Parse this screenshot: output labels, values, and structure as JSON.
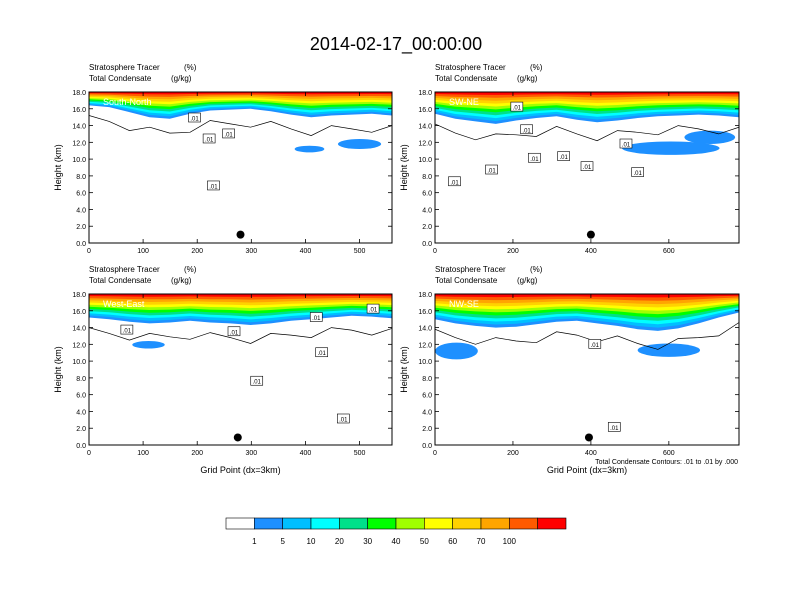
{
  "figure": {
    "title": "2014-02-17_00:00:00",
    "contour_note": "Total Condensate Contours: .01 to .01 by .000"
  },
  "colorbar": {
    "tick_labels": [
      "1",
      "5",
      "10",
      "20",
      "30",
      "40",
      "50",
      "60",
      "70",
      "100"
    ],
    "colors": [
      "#ffffff",
      "#1e90ff",
      "#00bfff",
      "#00ffff",
      "#00e08a",
      "#00ff00",
      "#a0ff00",
      "#ffff00",
      "#ffd200",
      "#ffa500",
      "#ff5a00",
      "#ff0000"
    ]
  },
  "chart_data": [
    {
      "type": "heatmap",
      "panel_label": "South-North",
      "subtitle_left_1": "Stratosphere Tracer",
      "subtitle_right_1": "(%)",
      "subtitle_left_2": "Total Condensate",
      "subtitle_right_2": "(g/kg)",
      "ylabel": "Height (km)",
      "xlabel": "",
      "xlim": [
        0,
        560
      ],
      "ylim": [
        0,
        18
      ],
      "xticks": [
        "0",
        "100",
        "200",
        "300",
        "400",
        "500"
      ],
      "xtick_values": [
        0,
        100,
        200,
        300,
        400,
        500
      ],
      "yticks": [
        "0.0",
        "2.0",
        "4.0",
        "6.0",
        "8.0",
        "10.0",
        "12.0",
        "14.0",
        "16.0",
        "18.0"
      ],
      "contour_labels": [
        {
          "text": ".01",
          "x": 195,
          "y": 14.9
        },
        {
          "text": ".01",
          "x": 222,
          "y": 12.4
        },
        {
          "text": ".01",
          "x": 258,
          "y": 13.0
        },
        {
          "text": ".01",
          "x": 230,
          "y": 6.8
        }
      ],
      "marker": {
        "x": 280,
        "y": 1.0
      },
      "tracer_base": [
        16.4,
        16.2,
        15.6,
        15.0,
        14.8,
        15.4,
        15.8,
        15.9,
        16.0,
        15.7,
        15.3,
        15.0,
        15.2,
        15.3,
        15.4,
        15.2
      ],
      "blue_patches": [
        {
          "x": 380,
          "y": 10.8,
          "w": 55,
          "h": 0.8
        },
        {
          "x": 460,
          "y": 11.2,
          "w": 80,
          "h": 1.2
        }
      ]
    },
    {
      "type": "heatmap",
      "panel_label": "SW-NE",
      "subtitle_left_1": "Stratosphere Tracer",
      "subtitle_right_1": "(%)",
      "subtitle_left_2": "Total Condensate",
      "subtitle_right_2": "(g/kg)",
      "ylabel": "Height (km)",
      "xlabel": "",
      "xlim": [
        0,
        780
      ],
      "ylim": [
        0,
        18
      ],
      "xticks": [
        "0",
        "200",
        "400",
        "600"
      ],
      "xtick_values": [
        0,
        200,
        400,
        600
      ],
      "yticks": [
        "0.0",
        "2.0",
        "4.0",
        "6.0",
        "8.0",
        "10.0",
        "12.0",
        "14.0",
        "16.0",
        "18.0"
      ],
      "contour_labels": [
        {
          "text": ".01",
          "x": 50,
          "y": 7.3
        },
        {
          "text": ".01",
          "x": 145,
          "y": 8.7
        },
        {
          "text": ".01",
          "x": 210,
          "y": 16.2
        },
        {
          "text": ".01",
          "x": 235,
          "y": 13.5
        },
        {
          "text": ".01",
          "x": 255,
          "y": 10.1
        },
        {
          "text": ".01",
          "x": 330,
          "y": 10.3
        },
        {
          "text": ".01",
          "x": 390,
          "y": 9.1
        },
        {
          "text": ".01",
          "x": 490,
          "y": 11.8
        },
        {
          "text": ".01",
          "x": 520,
          "y": 8.4
        }
      ],
      "marker": {
        "x": 400,
        "y": 1.0
      },
      "tracer_base": [
        15.4,
        14.8,
        14.5,
        14.2,
        14.6,
        14.9,
        15.1,
        14.7,
        14.4,
        14.6,
        14.9,
        15.1,
        15.2,
        15.3,
        15.2,
        15.0
      ],
      "blue_patches": [
        {
          "x": 480,
          "y": 10.5,
          "w": 250,
          "h": 1.6
        },
        {
          "x": 640,
          "y": 11.8,
          "w": 130,
          "h": 1.6
        }
      ]
    },
    {
      "type": "heatmap",
      "panel_label": "West-East",
      "subtitle_left_1": "Stratosphere Tracer",
      "subtitle_right_1": "(%)",
      "subtitle_left_2": "Total Condensate",
      "subtitle_right_2": "(g/kg)",
      "ylabel": "Height (km)",
      "xlabel": "Grid Point (dx=3km)",
      "xlim": [
        0,
        560
      ],
      "ylim": [
        0,
        18
      ],
      "xticks": [
        "0",
        "100",
        "200",
        "300",
        "400",
        "500"
      ],
      "xtick_values": [
        0,
        100,
        200,
        300,
        400,
        500
      ],
      "yticks": [
        "0.0",
        "2.0",
        "4.0",
        "6.0",
        "8.0",
        "10.0",
        "12.0",
        "14.0",
        "16.0",
        "18.0"
      ],
      "contour_labels": [
        {
          "text": ".01",
          "x": 70,
          "y": 13.7
        },
        {
          "text": ".01",
          "x": 268,
          "y": 13.5
        },
        {
          "text": ".01",
          "x": 420,
          "y": 15.2
        },
        {
          "text": ".01",
          "x": 430,
          "y": 11.0
        },
        {
          "text": ".01",
          "x": 525,
          "y": 16.2
        },
        {
          "text": ".01",
          "x": 310,
          "y": 7.6
        },
        {
          "text": ".01",
          "x": 470,
          "y": 3.1
        }
      ],
      "marker": {
        "x": 275,
        "y": 0.9
      },
      "tracer_base": [
        15.2,
        15.0,
        14.7,
        14.5,
        14.6,
        14.8,
        14.6,
        14.5,
        14.3,
        14.5,
        14.8,
        15.0,
        15.2,
        15.4,
        15.3,
        15.1
      ],
      "blue_patches": [
        {
          "x": 80,
          "y": 11.5,
          "w": 60,
          "h": 0.9
        }
      ]
    },
    {
      "type": "heatmap",
      "panel_label": "NW-SE",
      "subtitle_left_1": "Stratosphere Tracer",
      "subtitle_right_1": "(%)",
      "subtitle_left_2": "Total Condensate",
      "subtitle_right_2": "(g/kg)",
      "ylabel": "Height (km)",
      "xlabel": "Grid Point (dx=3km)",
      "xlim": [
        0,
        780
      ],
      "ylim": [
        0,
        18
      ],
      "xticks": [
        "0",
        "200",
        "400",
        "600"
      ],
      "xtick_values": [
        0,
        200,
        400,
        600
      ],
      "yticks": [
        "0.0",
        "2.0",
        "4.0",
        "6.0",
        "8.0",
        "10.0",
        "12.0",
        "14.0",
        "16.0",
        "18.0"
      ],
      "contour_labels": [
        {
          "text": ".01",
          "x": 410,
          "y": 12.0
        },
        {
          "text": ".01",
          "x": 460,
          "y": 2.1
        }
      ],
      "marker": {
        "x": 395,
        "y": 0.9
      },
      "tracer_base": [
        15.0,
        14.5,
        14.2,
        14.0,
        14.1,
        14.4,
        14.7,
        14.8,
        14.5,
        14.2,
        13.8,
        13.6,
        13.9,
        14.5,
        15.2,
        15.8
      ],
      "blue_patches": [
        {
          "x": 0,
          "y": 10.2,
          "w": 110,
          "h": 2.0
        },
        {
          "x": 520,
          "y": 10.5,
          "w": 160,
          "h": 1.6
        }
      ]
    }
  ]
}
